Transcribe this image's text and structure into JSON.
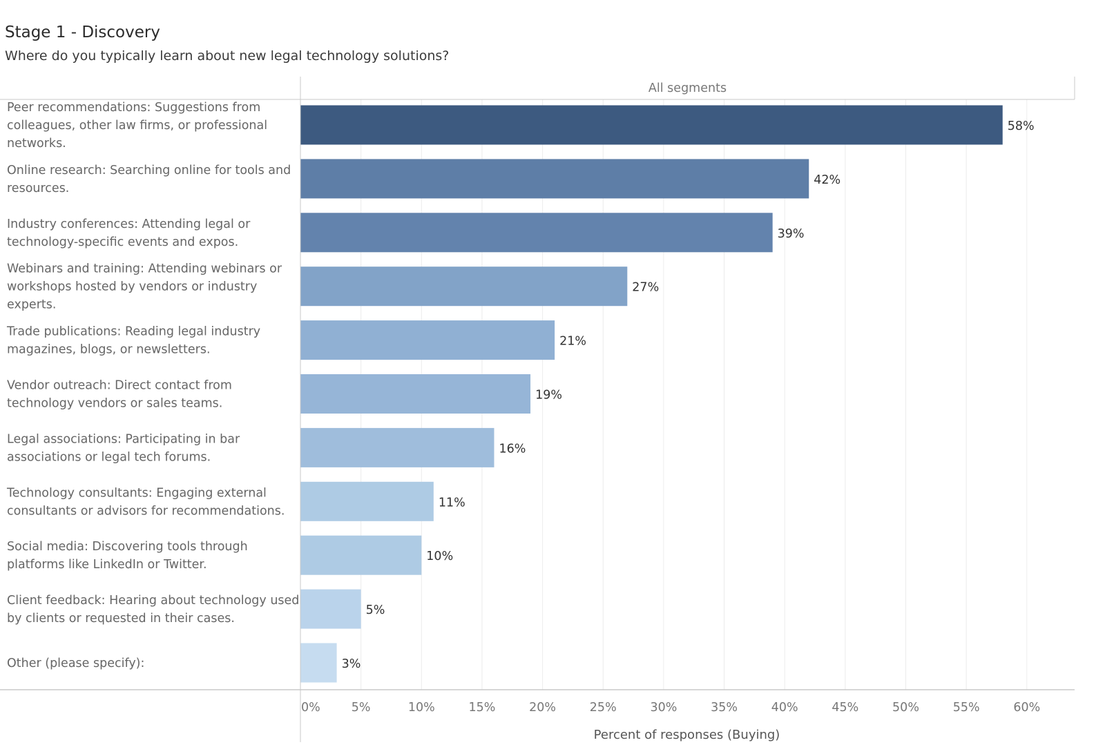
{
  "title": "Stage 1 - Discovery",
  "subtitle": "Where do you typically learn about new legal technology solutions?",
  "chart_data": {
    "type": "bar",
    "orientation": "horizontal",
    "column_header": "All segments",
    "categories": [
      "Peer recommendations: Suggestions from colleagues, other law firms, or professional networks.",
      "Online research: Searching online for tools and resources.",
      "Industry conferences: Attending legal or technology-specific events and expos.",
      "Webinars and training: Attending webinars or workshops hosted by vendors or industry experts.",
      "Trade publications: Reading legal industry magazines, blogs, or newsletters.",
      "Vendor outreach: Direct contact from technology vendors or sales teams.",
      "Legal associations: Participating in bar associations or legal tech forums.",
      "Technology consultants: Engaging external consultants or advisors for recommendations.",
      "Social media: Discovering tools through platforms like LinkedIn or Twitter.",
      "Client feedback: Hearing about technology used by clients or requested in their cases.",
      "Other (please specify):"
    ],
    "category_lines": [
      [
        "Peer recommendations: Suggestions from",
        "colleagues, other law firms, or professional",
        "networks."
      ],
      [
        "Online research: Searching online for tools and",
        "resources."
      ],
      [
        "Industry conferences: Attending legal or",
        "technology-specific events and expos."
      ],
      [
        "Webinars and training: Attending webinars or",
        "workshops hosted by vendors or industry",
        "experts."
      ],
      [
        "Trade publications: Reading legal industry",
        "magazines, blogs, or newsletters."
      ],
      [
        "Vendor outreach: Direct contact from",
        "technology vendors or sales teams."
      ],
      [
        "Legal associations: Participating in bar",
        "associations or legal tech forums."
      ],
      [
        "Technology consultants: Engaging external",
        "consultants or advisors for recommendations."
      ],
      [
        "Social media: Discovering tools through",
        "platforms like LinkedIn or Twitter."
      ],
      [
        "Client feedback: Hearing about technology used",
        "by clients or requested in their cases."
      ],
      [
        "Other (please specify):"
      ]
    ],
    "values": [
      58,
      42,
      39,
      27,
      21,
      19,
      16,
      11,
      10,
      5,
      3
    ],
    "value_labels": [
      "58%",
      "42%",
      "39%",
      "27%",
      "21%",
      "19%",
      "16%",
      "11%",
      "10%",
      "5%",
      "3%"
    ],
    "colors": [
      "#3d5a80",
      "#5e7ea7",
      "#6383ad",
      "#82a3c8",
      "#90b0d3",
      "#96b5d7",
      "#9fbddc",
      "#aecbe4",
      "#aecbe4",
      "#bad3eb",
      "#c6dcf0"
    ],
    "xlabel": "Percent of responses (Buying)",
    "xlim": [
      0,
      62
    ],
    "xticks": [
      0,
      5,
      10,
      15,
      20,
      25,
      30,
      35,
      40,
      45,
      50,
      55,
      60
    ],
    "xtick_labels": [
      "0%",
      "5%",
      "10%",
      "15%",
      "20%",
      "25%",
      "30%",
      "35%",
      "40%",
      "45%",
      "50%",
      "55%",
      "60%"
    ],
    "grid": true,
    "legend": "none"
  }
}
